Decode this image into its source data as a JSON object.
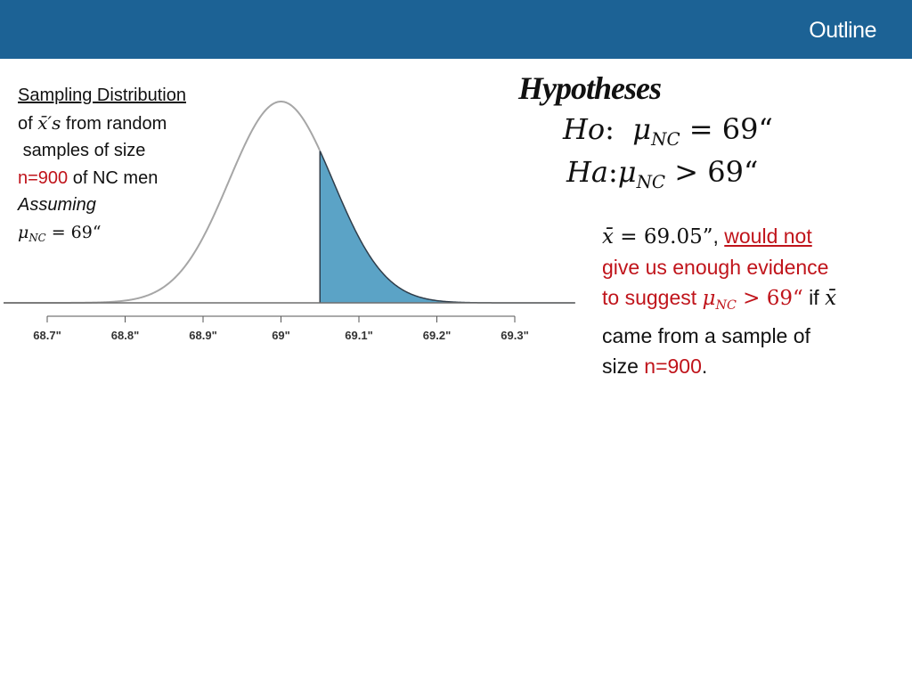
{
  "header": {
    "title": "Outline"
  },
  "left_caption": {
    "line1": "Sampling Distribution",
    "line2_pre": "of ",
    "line2_math": "x̄′s",
    "line2_post": " from random",
    "line3": "samples of size",
    "line4_red": "n=900",
    "line4_post": " of NC men",
    "line5": "Assuming",
    "line6_mu": "μ",
    "line6_sub": "NC",
    "line6_rest": " = 69“"
  },
  "hypotheses": {
    "title": "Hypotheses",
    "ho_label": "Ho",
    "ho_mu": "μ",
    "ho_sub": "NC",
    "ho_rest": " = 69“",
    "ha_label": "Ha",
    "ha_mu": "μ",
    "ha_sub": "NC",
    "ha_rest": " > 69“"
  },
  "note": {
    "xbar": "x̄",
    "xbar_value": " = 69.05”",
    "comma": ", ",
    "would_not": "would not",
    "line2": "give us enough evidence",
    "line3_pre": "to suggest ",
    "line3_mu": "μ",
    "line3_sub": "NC",
    "line3_rest": " > 69“",
    "line3_if": " if ",
    "line3_xbar": "x̄",
    "line4": "came from a sample of",
    "line5_pre": "size ",
    "line5_red": "n=900",
    "line5_post": "."
  },
  "chart_data": {
    "type": "area",
    "distribution": "normal",
    "mean": 69,
    "sd": 0.0667,
    "xlim": [
      68.7,
      69.3
    ],
    "shaded_from": 69.05,
    "shaded_to": 69.3,
    "ticks": [
      68.7,
      68.8,
      68.9,
      69.0,
      69.1,
      69.2,
      69.3
    ],
    "tick_labels": [
      "68.7\"",
      "68.8\"",
      "68.9\"",
      "69\"",
      "69.1\"",
      "69.2\"",
      "69.3\""
    ],
    "title": "",
    "xlabel": "",
    "ylabel": "",
    "colors": {
      "curve": "#a6a6a6",
      "shade": "#5ba3c6",
      "shade_edge": "#2f3d4a",
      "axis": "#555555"
    }
  }
}
